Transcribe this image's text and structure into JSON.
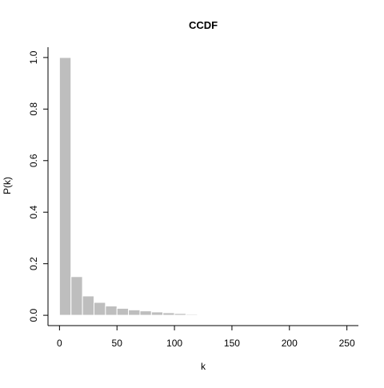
{
  "chart_data": {
    "type": "bar",
    "title": "CCDF",
    "xlabel": "k",
    "ylabel": "P(k)",
    "x_ticks": [
      0,
      50,
      100,
      150,
      200,
      250
    ],
    "y_ticks": [
      0.0,
      0.2,
      0.4,
      0.6,
      0.8,
      1.0
    ],
    "y_tick_labels": [
      "0.0",
      "0.2",
      "0.4",
      "0.6",
      "0.8",
      "1.0"
    ],
    "xlim": [
      -10,
      260
    ],
    "ylim": [
      -0.04,
      1.04
    ],
    "bin_width": 10,
    "bars": [
      {
        "x_start": 0,
        "x_end": 10,
        "value": 1.0
      },
      {
        "x_start": 10,
        "x_end": 20,
        "value": 0.15
      },
      {
        "x_start": 20,
        "x_end": 30,
        "value": 0.075
      },
      {
        "x_start": 30,
        "x_end": 40,
        "value": 0.05
      },
      {
        "x_start": 40,
        "x_end": 50,
        "value": 0.036
      },
      {
        "x_start": 50,
        "x_end": 60,
        "value": 0.027
      },
      {
        "x_start": 60,
        "x_end": 70,
        "value": 0.021
      },
      {
        "x_start": 70,
        "x_end": 80,
        "value": 0.017
      },
      {
        "x_start": 80,
        "x_end": 90,
        "value": 0.013
      },
      {
        "x_start": 90,
        "x_end": 100,
        "value": 0.01
      },
      {
        "x_start": 100,
        "x_end": 110,
        "value": 0.007
      },
      {
        "x_start": 110,
        "x_end": 120,
        "value": 0.004
      },
      {
        "x_start": 120,
        "x_end": 130,
        "value": 0.002
      }
    ],
    "grid": false,
    "legend": "none",
    "bar_color": "#bebebe",
    "bar_border_color": "#ffffff",
    "axis_color": "#000000"
  }
}
